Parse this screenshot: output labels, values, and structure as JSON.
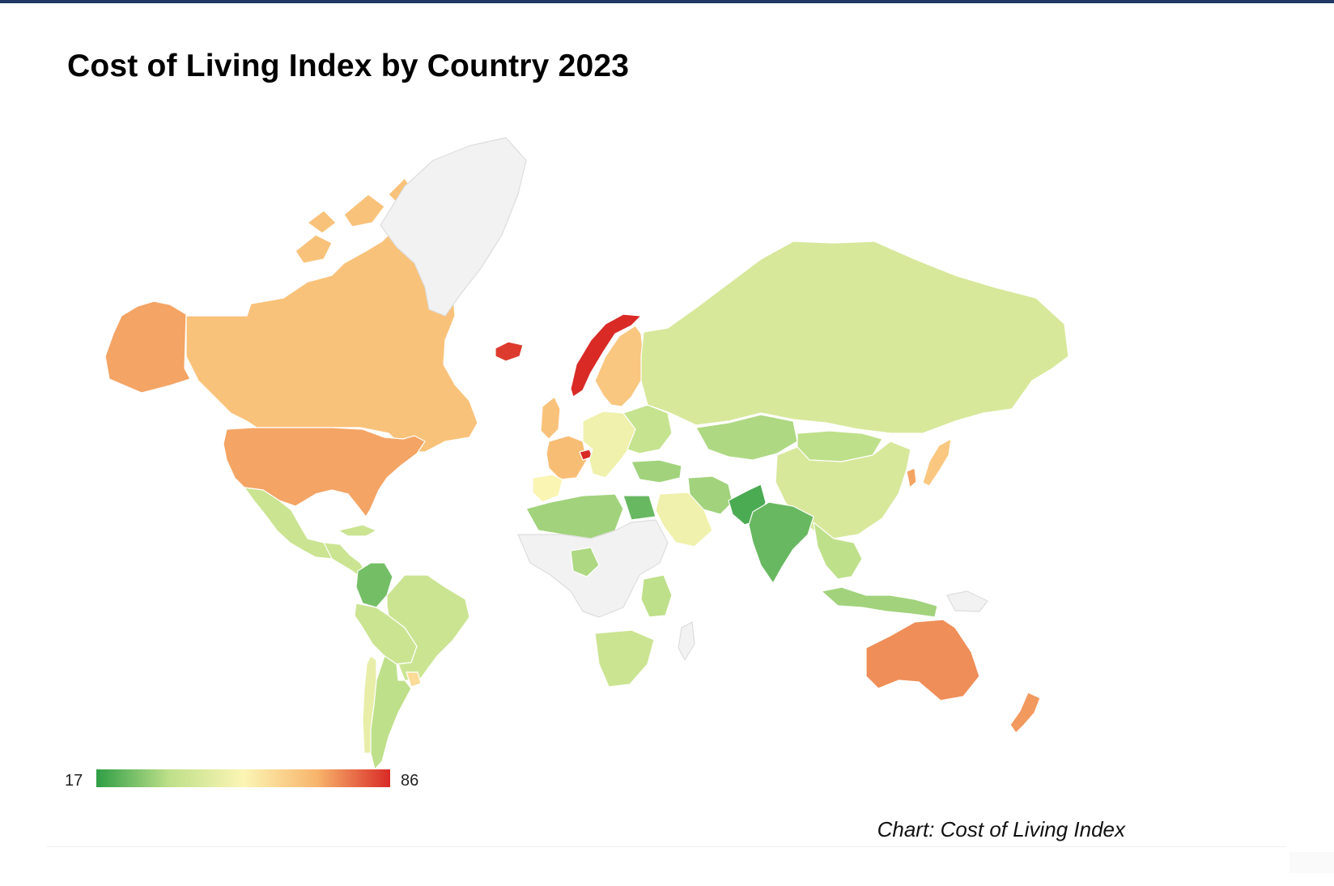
{
  "title": "Cost of Living Index by Country 2023",
  "source": "Chart: Cost of Living Index",
  "colors": {
    "low": "#2e9e45",
    "mid_low": "#bfe08a",
    "mid": "#fbf5b4",
    "mid_high": "#f8b56c",
    "high": "#d92a26",
    "no_data": "#f2f2f2",
    "border": "#dddddd"
  },
  "chart_data": {
    "type": "choropleth",
    "legend": {
      "min": "17",
      "max": "86",
      "placement": "bottom-left"
    },
    "regions": [
      {
        "id": "canada",
        "level": 0.7
      },
      {
        "id": "alaska",
        "level": 0.78
      },
      {
        "id": "usa",
        "level": 0.78
      },
      {
        "id": "mexico",
        "level": 0.3
      },
      {
        "id": "central-america",
        "level": 0.3
      },
      {
        "id": "colombia",
        "level": 0.12
      },
      {
        "id": "brazil",
        "level": 0.3
      },
      {
        "id": "peru-bolivia",
        "level": 0.3
      },
      {
        "id": "argentina",
        "level": 0.25
      },
      {
        "id": "chile",
        "level": 0.42
      },
      {
        "id": "uruguay",
        "level": 0.6
      },
      {
        "id": "greenland",
        "level": null
      },
      {
        "id": "iceland",
        "level": 0.97
      },
      {
        "id": "norway",
        "level": 1.0
      },
      {
        "id": "sweden-finland",
        "level": 0.68
      },
      {
        "id": "uk",
        "level": 0.7
      },
      {
        "id": "france",
        "level": 0.72
      },
      {
        "id": "switzerland",
        "level": 1.0
      },
      {
        "id": "iberia",
        "level": 0.5
      },
      {
        "id": "central-europe",
        "level": 0.45
      },
      {
        "id": "eastern-europe",
        "level": 0.28
      },
      {
        "id": "turkey",
        "level": 0.2
      },
      {
        "id": "russia",
        "level": 0.35
      },
      {
        "id": "north-africa",
        "level": 0.2
      },
      {
        "id": "egypt",
        "level": 0.1
      },
      {
        "id": "central-africa",
        "level": null
      },
      {
        "id": "nigeria",
        "level": 0.22
      },
      {
        "id": "east-africa",
        "level": 0.25
      },
      {
        "id": "madagascar",
        "level": null
      },
      {
        "id": "southern-africa",
        "level": 0.3
      },
      {
        "id": "saudi-arabia",
        "level": 0.45
      },
      {
        "id": "iran",
        "level": 0.2
      },
      {
        "id": "kazakhstan",
        "level": 0.22
      },
      {
        "id": "mongolia",
        "level": 0.25
      },
      {
        "id": "china",
        "level": 0.35
      },
      {
        "id": "pakistan",
        "level": 0.05
      },
      {
        "id": "india",
        "level": 0.1
      },
      {
        "id": "southeast-asia",
        "level": 0.25
      },
      {
        "id": "korea",
        "level": 0.78
      },
      {
        "id": "japan",
        "level": 0.68
      },
      {
        "id": "indonesia",
        "level": 0.2
      },
      {
        "id": "png",
        "level": null
      },
      {
        "id": "australia",
        "level": 0.82
      },
      {
        "id": "new-zealand",
        "level": 0.8
      }
    ]
  }
}
